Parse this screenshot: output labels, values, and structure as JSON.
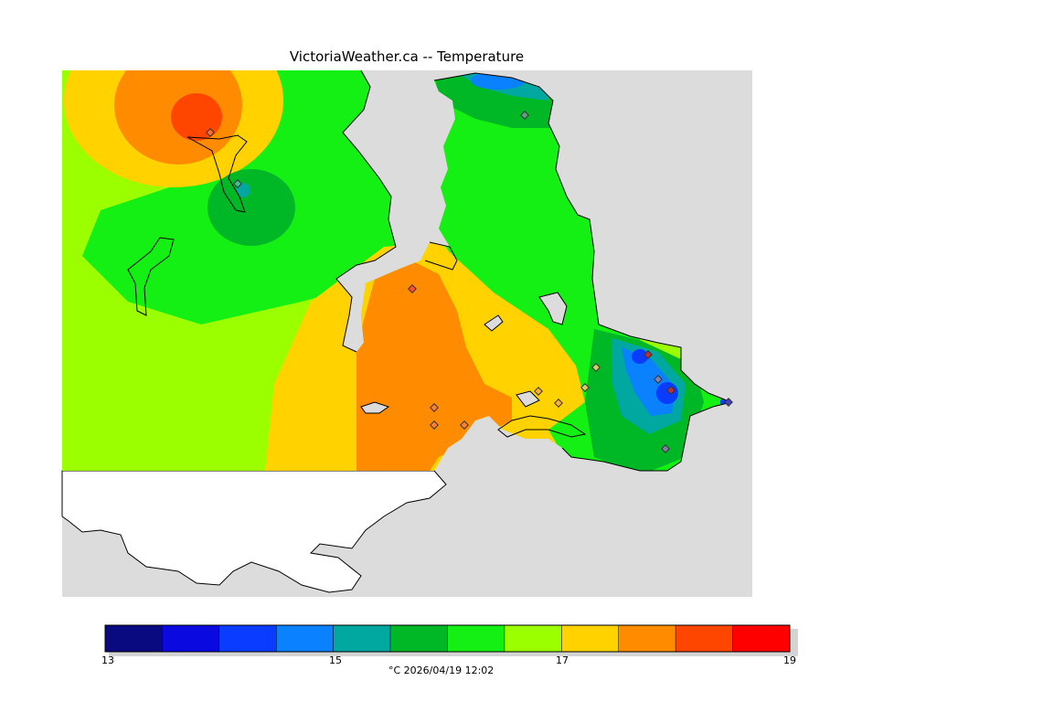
{
  "title": "VictoriaWeather.ca -- Temperature",
  "colors": {
    "c13": "#0a0a80",
    "c13_5": "#0a0ae0",
    "c14": "#0a3cff",
    "c14_5": "#0a82ff",
    "c15": "#00a8a0",
    "c15_5": "#00b826",
    "c16": "#14f014",
    "c16_5": "#9cff00",
    "c17": "#ffd200",
    "c17_5": "#ff8c00",
    "c18": "#ff4600",
    "c18_5": "#ff0000",
    "water": "#dcdcdc",
    "land_outside": "#ffffff"
  },
  "legend": {
    "unit_caption": "°C  2026/04/19 12:02",
    "ticks": [
      "13",
      "15",
      "17",
      "19"
    ],
    "bins": [
      {
        "from": 13.0,
        "to": 13.5,
        "color": "#0a0a80"
      },
      {
        "from": 13.5,
        "to": 14.0,
        "color": "#0a0ae0"
      },
      {
        "from": 14.0,
        "to": 14.5,
        "color": "#0a3cff"
      },
      {
        "from": 14.5,
        "to": 15.0,
        "color": "#0a82ff"
      },
      {
        "from": 15.0,
        "to": 15.5,
        "color": "#00a8a0"
      },
      {
        "from": 15.5,
        "to": 16.0,
        "color": "#00b826"
      },
      {
        "from": 16.0,
        "to": 16.5,
        "color": "#14f014"
      },
      {
        "from": 16.5,
        "to": 17.0,
        "color": "#9cff00"
      },
      {
        "from": 17.0,
        "to": 17.5,
        "color": "#ffd200"
      },
      {
        "from": 17.5,
        "to": 18.0,
        "color": "#ff8c00"
      },
      {
        "from": 18.0,
        "to": 18.5,
        "color": "#ff4600"
      },
      {
        "from": 18.5,
        "to": 19.0,
        "color": "#ff0000"
      }
    ]
  }
}
